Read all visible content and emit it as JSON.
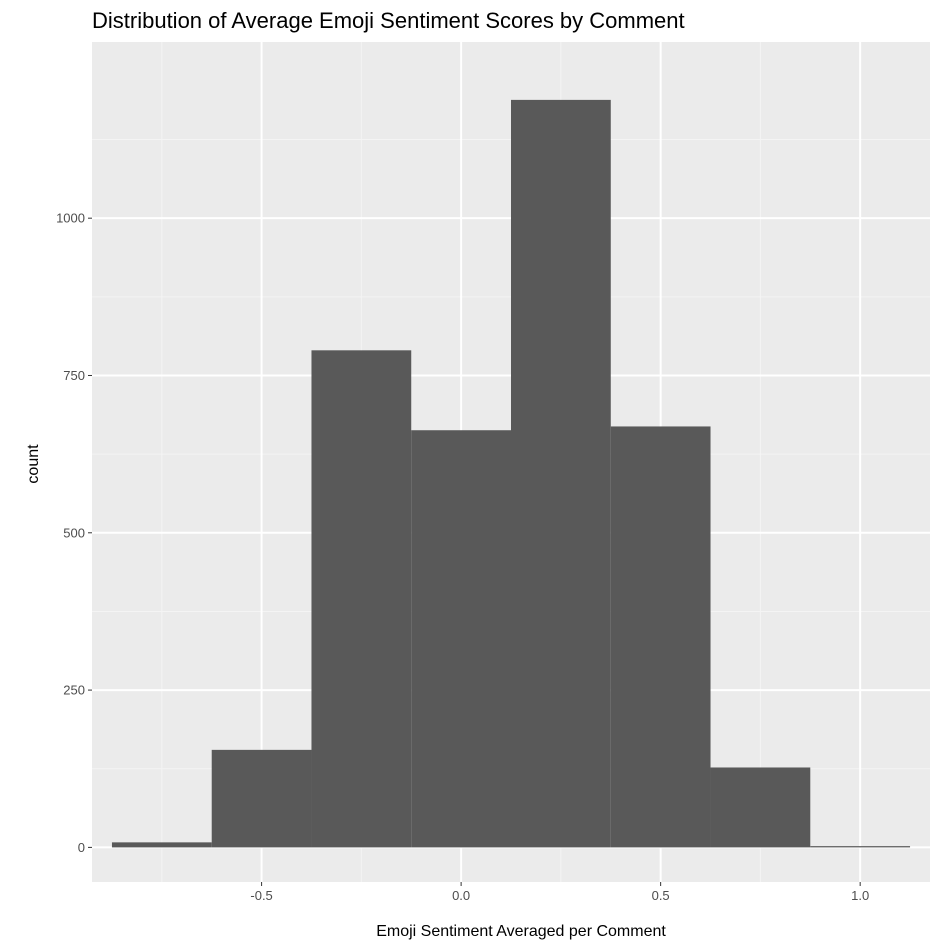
{
  "chart_data": {
    "type": "bar",
    "histogram": true,
    "title": "Distribution of Average Emoji Sentiment Scores by Comment",
    "xlabel": "Emoji Sentiment Averaged per Comment",
    "ylabel": "count",
    "bins": [
      {
        "x0": -0.875,
        "x1": -0.625,
        "count": 8
      },
      {
        "x0": -0.625,
        "x1": -0.375,
        "count": 155
      },
      {
        "x0": -0.375,
        "x1": -0.125,
        "count": 790
      },
      {
        "x0": -0.125,
        "x1": 0.125,
        "count": 663
      },
      {
        "x0": 0.125,
        "x1": 0.375,
        "count": 1188
      },
      {
        "x0": 0.375,
        "x1": 0.625,
        "count": 669
      },
      {
        "x0": 0.625,
        "x1": 0.875,
        "count": 127
      },
      {
        "x0": 0.875,
        "x1": 1.125,
        "count": 2
      }
    ],
    "xlim": [
      -0.925,
      1.175
    ],
    "ylim": [
      -55,
      1280
    ],
    "x_ticks": [
      -0.5,
      0.0,
      0.5,
      1.0
    ],
    "x_tick_labels": [
      "-0.5",
      "0.0",
      "0.5",
      "1.0"
    ],
    "x_minor_ticks": [
      -0.75,
      -0.25,
      0.25,
      0.75
    ],
    "y_ticks": [
      0,
      250,
      500,
      750,
      1000
    ],
    "y_tick_labels": [
      "0",
      "250",
      "500",
      "750",
      "1000"
    ],
    "y_minor_ticks": [
      125,
      375,
      625,
      875,
      1125
    ],
    "grid": true,
    "colors": {
      "bar": "#595959",
      "panel": "#ebebeb",
      "grid_major": "#ffffff",
      "grid_minor": "#f4f4f4",
      "tick": "#333333"
    }
  }
}
